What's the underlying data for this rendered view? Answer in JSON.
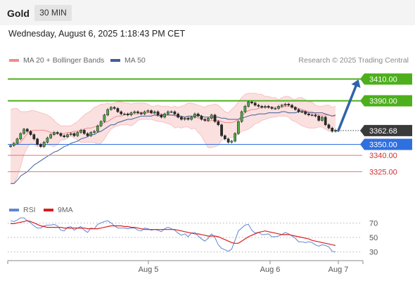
{
  "header": {
    "instrument": "Gold",
    "timeframe": "30 MIN",
    "datetime": "Wednesday, August 6, 2025 1:18:43 PM CET",
    "credit": "Research © 2025 Trading Central"
  },
  "colors": {
    "bollinger": "#f28b8b",
    "ma50": "#3f5f9a",
    "resistance": "#4caf1b",
    "pivot": "#2f6fe0",
    "support": "#e27373",
    "arrow": "#2f63a8",
    "rsi": "#5d86d6",
    "rsi_ma": "#d91e1e"
  },
  "chart_data": [
    {
      "type": "candlestick",
      "legend": [
        {
          "label": "MA 20 + Bollinger Bands",
          "color": "#f28b8b"
        },
        {
          "label": "MA 50",
          "color": "#3f5f9a"
        }
      ],
      "x_labels": [
        "Aug 5",
        "Aug 6",
        "Aug 7"
      ],
      "ylim": [
        3302,
        3420
      ],
      "last_price": 3362.68,
      "last_price_label": "3362.68",
      "levels": [
        {
          "value": 3410,
          "label": "3410.00",
          "kind": "resistance"
        },
        {
          "value": 3390,
          "label": "3390.00",
          "kind": "resistance"
        },
        {
          "value": 3350,
          "label": "3350.00",
          "kind": "pivot"
        },
        {
          "value": 3340,
          "label": "3340.00",
          "kind": "support"
        },
        {
          "value": 3325,
          "label": "3325.00",
          "kind": "support"
        }
      ],
      "forecast_arrow": {
        "from": 3362.68,
        "to": 3410
      },
      "close": [
        3349,
        3351,
        3355,
        3360,
        3364,
        3362,
        3359,
        3355,
        3350,
        3348,
        3352,
        3356,
        3359,
        3361,
        3360,
        3358,
        3357,
        3359,
        3360,
        3358,
        3361,
        3363,
        3360,
        3358,
        3361,
        3362,
        3367,
        3371,
        3377,
        3382,
        3384,
        3383,
        3380,
        3378,
        3378,
        3377,
        3379,
        3380,
        3379,
        3378,
        3380,
        3381,
        3379,
        3380,
        3377,
        3375,
        3378,
        3380,
        3380,
        3378,
        3375,
        3373,
        3374,
        3373,
        3375,
        3378,
        3376,
        3373,
        3372,
        3374,
        3377,
        3371,
        3368,
        3358,
        3355,
        3352,
        3353,
        3360,
        3371,
        3380,
        3385,
        3389,
        3388,
        3386,
        3385,
        3384,
        3385,
        3384,
        3383,
        3383,
        3385,
        3386,
        3387,
        3386,
        3384,
        3382,
        3380,
        3380,
        3378,
        3377,
        3377,
        3376,
        3372,
        3375,
        3368,
        3365,
        3362,
        3363
      ],
      "bb_upper": [
        3382,
        3383,
        3383,
        3380,
        3380,
        3380,
        3381,
        3381,
        3380,
        3379,
        3378,
        3377,
        3375,
        3372,
        3369,
        3367,
        3367,
        3367,
        3367,
        3369,
        3371,
        3374,
        3377,
        3379,
        3381,
        3384,
        3385,
        3387,
        3387,
        3388,
        3387,
        3388,
        3389,
        3389,
        3388,
        3388,
        3387,
        3388,
        3388,
        3388,
        3388,
        3387,
        3385,
        3385,
        3386,
        3385,
        3385,
        3385,
        3384,
        3385,
        3384,
        3385,
        3386,
        3388,
        3388,
        3387,
        3386,
        3385,
        3384,
        3386,
        3386,
        3387,
        3386,
        3383,
        3380,
        3379,
        3382,
        3385,
        3389,
        3393,
        3396,
        3397,
        3397,
        3397,
        3396,
        3396,
        3394,
        3394,
        3393,
        3393,
        3391,
        3393,
        3394,
        3394,
        3392,
        3391,
        3393,
        3393,
        3391,
        3389,
        3389,
        3386,
        3385,
        3385,
        3386,
        3386,
        3384,
        3385
      ],
      "bb_lower": [
        3315,
        3314,
        3320,
        3330,
        3341,
        3347,
        3351,
        3350,
        3348,
        3348,
        3348,
        3350,
        3349,
        3348,
        3350,
        3354,
        3354,
        3356,
        3358,
        3356,
        3354,
        3352,
        3352,
        3352,
        3352,
        3352,
        3350,
        3351,
        3355,
        3360,
        3364,
        3366,
        3367,
        3368,
        3368,
        3368,
        3367,
        3369,
        3372,
        3373,
        3373,
        3373,
        3373,
        3372,
        3371,
        3371,
        3370,
        3369,
        3368,
        3365,
        3366,
        3365,
        3366,
        3366,
        3364,
        3365,
        3361,
        3358,
        3352,
        3347,
        3347,
        3348,
        3349,
        3354,
        3355,
        3356,
        3356,
        3358,
        3359,
        3362,
        3363,
        3364,
        3366,
        3369,
        3370,
        3372,
        3373,
        3374,
        3375,
        3375,
        3376,
        3376,
        3376,
        3375,
        3372,
        3371,
        3369,
        3367,
        3366,
        3365,
        3365,
        3365,
        3366,
        3366,
        3364,
        3362,
        3363,
        3362
      ],
      "ma20": [
        3350,
        3350,
        3350,
        3352,
        3356,
        3360,
        3362,
        3363,
        3363,
        3363,
        3363,
        3362,
        3361,
        3360,
        3360,
        3360,
        3360,
        3361,
        3361,
        3362,
        3362,
        3363,
        3364,
        3365,
        3365,
        3366,
        3367,
        3368,
        3370,
        3371,
        3373,
        3375,
        3376,
        3376,
        3377,
        3378,
        3378,
        3378,
        3378,
        3379,
        3379,
        3379,
        3379,
        3378,
        3378,
        3378,
        3377,
        3377,
        3377,
        3376,
        3375,
        3375,
        3375,
        3375,
        3374,
        3375,
        3374,
        3374,
        3372,
        3371,
        3372,
        3372,
        3372,
        3371,
        3370,
        3370,
        3370,
        3371,
        3373,
        3376,
        3379,
        3381,
        3382,
        3382,
        3383,
        3384,
        3384,
        3384,
        3384,
        3384,
        3384,
        3384,
        3385,
        3385,
        3384,
        3384,
        3383,
        3382,
        3381,
        3380,
        3380,
        3378,
        3377,
        3377,
        3377,
        3377,
        3376,
        3376
      ],
      "ma50": [
        3314,
        3314,
        3317,
        3321,
        3323,
        3325,
        3328,
        3331,
        3333,
        3335,
        3337,
        3339,
        3341,
        3343,
        3344,
        3346,
        3348,
        3349,
        3351,
        3352,
        3353,
        3355,
        3356,
        3357,
        3359,
        3359,
        3361,
        3362,
        3364,
        3366,
        3368,
        3368,
        3370,
        3371,
        3372,
        3373,
        3373,
        3374,
        3375,
        3376,
        3376,
        3376,
        3376,
        3377,
        3376,
        3377,
        3377,
        3377,
        3377,
        3377,
        3376,
        3376,
        3375,
        3376,
        3376,
        3376,
        3377,
        3376,
        3375,
        3375,
        3375,
        3375,
        3375,
        3374,
        3374,
        3373,
        3373,
        3373,
        3373,
        3374,
        3375,
        3376,
        3377,
        3377,
        3378,
        3378,
        3378,
        3379,
        3379,
        3379,
        3379,
        3380,
        3380,
        3379,
        3379,
        3379,
        3380,
        3381,
        3380,
        3379,
        3379,
        3379,
        3379,
        3379,
        3378,
        3377,
        3376,
        3377
      ]
    },
    {
      "type": "line",
      "legend": [
        {
          "label": "RSI",
          "color": "#5d86d6"
        },
        {
          "label": "9MA",
          "color": "#d91e1e"
        }
      ],
      "ylim": [
        22,
        80
      ],
      "y_ticks": [
        {
          "value": 70,
          "label": "70"
        },
        {
          "value": 50,
          "label": "50"
        },
        {
          "value": 30,
          "label": "30"
        }
      ],
      "rsi": [
        73,
        72,
        74,
        77,
        77,
        73,
        70,
        66,
        63,
        63,
        66,
        67,
        67,
        68,
        66,
        60,
        59,
        64,
        65,
        60,
        63,
        65,
        60,
        57,
        63,
        62,
        68,
        70,
        72,
        73,
        70,
        66,
        63,
        63,
        63,
        62,
        63,
        63,
        60,
        59,
        63,
        62,
        60,
        61,
        60,
        58,
        62,
        64,
        62,
        60,
        56,
        53,
        55,
        51,
        56,
        57,
        52,
        48,
        45,
        49,
        55,
        50,
        40,
        35,
        33,
        31,
        34,
        46,
        59,
        63,
        67,
        68,
        60,
        56,
        57,
        54,
        54,
        55,
        51,
        51,
        52,
        54,
        57,
        55,
        52,
        49,
        44,
        44,
        43,
        44,
        43,
        40,
        38,
        40,
        39,
        37,
        31,
        30
      ],
      "rsi_ma": [
        69,
        69,
        70,
        71,
        72,
        73,
        72,
        70,
        68,
        66,
        65,
        64,
        64,
        64,
        64,
        64,
        63,
        63,
        63,
        63,
        63,
        63,
        63,
        62,
        62,
        62,
        62,
        63,
        64,
        65,
        66,
        66,
        66,
        66,
        65,
        65,
        64,
        64,
        63,
        62,
        61,
        61,
        61,
        61,
        61,
        61,
        61,
        61,
        61,
        61,
        60,
        59,
        58,
        57,
        56,
        55,
        55,
        54,
        53,
        52,
        52,
        52,
        51,
        49,
        47,
        45,
        43,
        42,
        42,
        45,
        48,
        51,
        53,
        55,
        57,
        58,
        59,
        58,
        57,
        56,
        55,
        54,
        54,
        54,
        53,
        52,
        51,
        50,
        49,
        48,
        46,
        45,
        44,
        43,
        42,
        41,
        40,
        39
      ]
    }
  ]
}
